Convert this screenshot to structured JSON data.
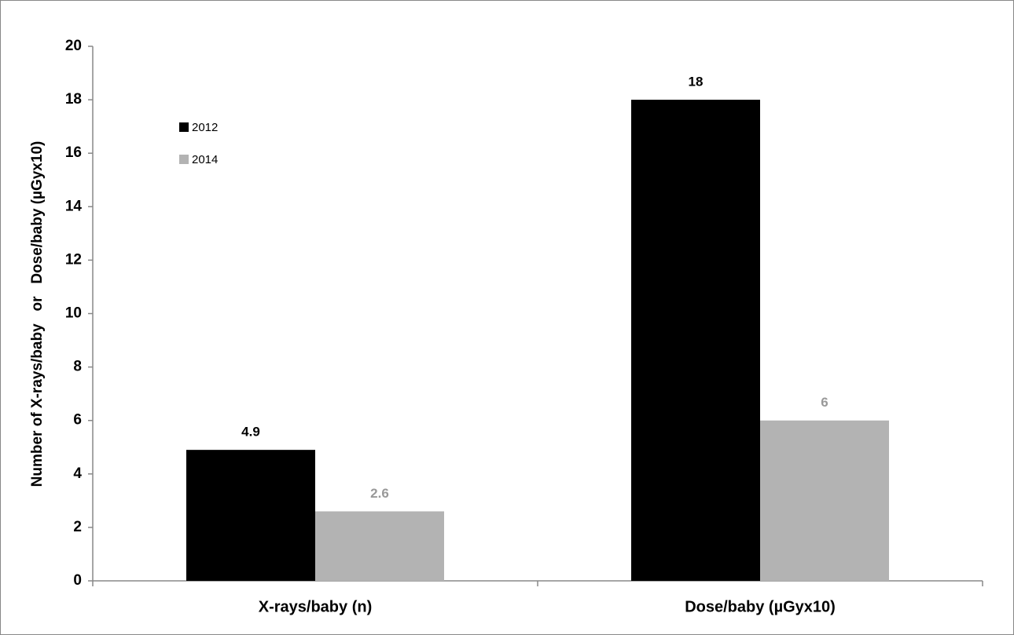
{
  "chart_data": {
    "type": "bar",
    "y_label": "Number of X-rays/baby   or   Dose/baby (µGyx10)",
    "categories": [
      "X-rays/baby (n)",
      "Dose/baby (µGyx10)"
    ],
    "series": [
      {
        "name": "2012",
        "color": "#000000",
        "label_color": "#000000",
        "values": [
          4.9,
          18
        ]
      },
      {
        "name": "2014",
        "color": "#b3b3b3",
        "label_color": "#999999",
        "values": [
          2.6,
          6
        ]
      }
    ],
    "ylim": [
      0,
      20
    ],
    "yticks": [
      0,
      2,
      4,
      6,
      8,
      10,
      12,
      14,
      16,
      18,
      20
    ],
    "grid": false
  }
}
